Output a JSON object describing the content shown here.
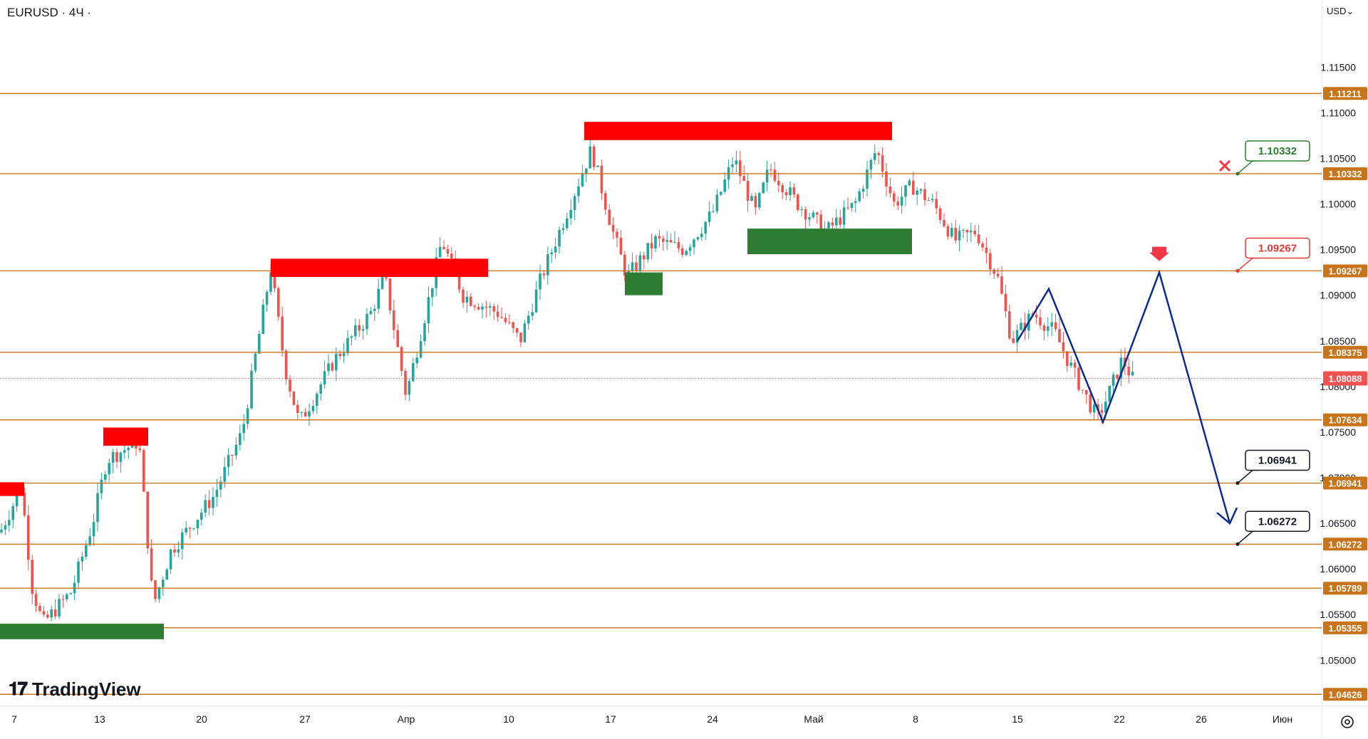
{
  "header": {
    "symbol": "EURUSD · 4Ч ·",
    "currency": "USD"
  },
  "footer": {
    "brand": "TradingView",
    "settings_icon": "gear-icon"
  },
  "chart_data": {
    "type": "candlestick",
    "x_axis_labels": [
      "7",
      "13",
      "20",
      "27",
      "Апр",
      "10",
      "17",
      "24",
      "Май",
      "8",
      "15",
      "22",
      "26",
      "Июн"
    ],
    "y_axis_ticks": [
      "1.11500",
      "1.11000",
      "1.10500",
      "1.10000",
      "1.09500",
      "1.09000",
      "1.08500",
      "1.08000",
      "1.07500",
      "1.07000",
      "1.06500",
      "1.06000",
      "1.05500",
      "1.05000"
    ],
    "y_range": [
      1.0455,
      1.119
    ],
    "current_price": "1.08088",
    "horizontal_levels": [
      "1.11211",
      "1.10332",
      "1.09267",
      "1.08375",
      "1.07634",
      "1.06941",
      "1.06272",
      "1.05789",
      "1.05355",
      "1.04626"
    ],
    "callouts": [
      {
        "label": "1.10332",
        "color": "#2e7d32"
      },
      {
        "label": "1.09267",
        "color": "#e53935"
      },
      {
        "label": "1.06941",
        "color": "#131722"
      },
      {
        "label": "1.06272",
        "color": "#131722"
      }
    ],
    "colors": {
      "level": "#c8741a",
      "up": "#26a69a",
      "down": "#ef5350",
      "resistance": "#ff0000",
      "support": "#2e7d32",
      "projection": "#0d2c8f"
    },
    "resistance_zones": [
      {
        "x0": "7",
        "x1": "8",
        "y0": 1.0695,
        "y1": 1.068
      },
      {
        "x0": "15",
        "x1": "19",
        "y0": 1.0755,
        "y1": 1.0735
      },
      {
        "x0": "25",
        "x1": "Апр+9",
        "y0": 1.094,
        "y1": 1.092
      },
      {
        "x0": "16",
        "x1": "6",
        "y0": 1.109,
        "y1": 1.107
      }
    ],
    "support_zones": [
      {
        "x0": "7",
        "x1": "16",
        "y0": 1.054,
        "y1": 1.0523
      },
      {
        "x0": "18",
        "x1": "19",
        "y0": 1.0925,
        "y1": 1.09
      },
      {
        "x0": "26",
        "x1": "7",
        "y0": 1.0973,
        "y1": 1.0945
      }
    ],
    "projection_path": [
      {
        "x": "15",
        "y": 1.085
      },
      {
        "x": "17",
        "y": 1.0907
      },
      {
        "x": "20",
        "y": 1.0761
      },
      {
        "x": "23",
        "y": 1.0925
      },
      {
        "x": "28",
        "y": 1.065
      }
    ]
  }
}
